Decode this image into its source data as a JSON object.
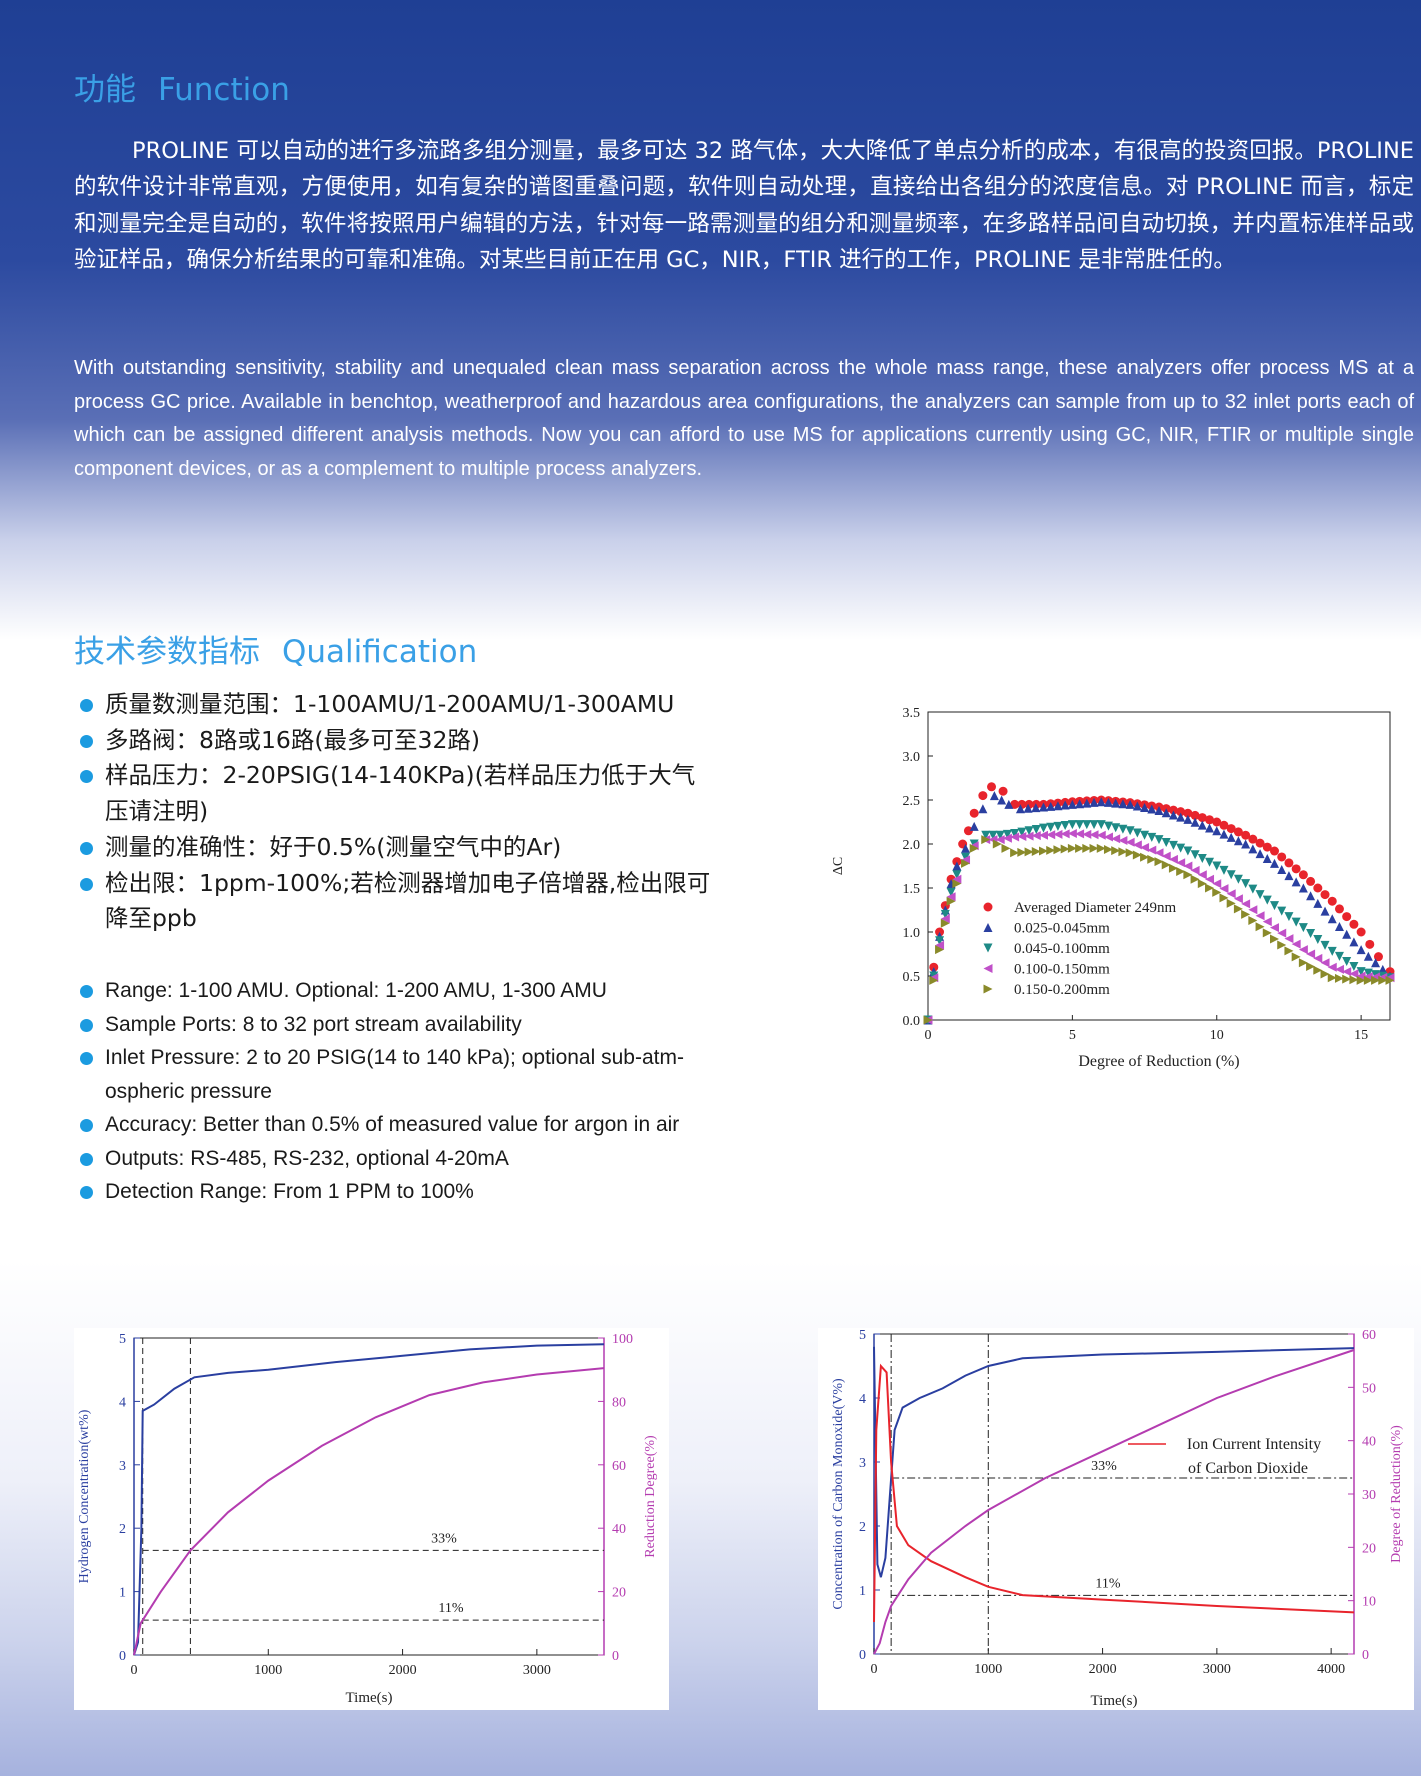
{
  "function_section": {
    "title_cn": "功能",
    "title_en": "Function",
    "paragraph_cn": "PROLINE 可以自动的进行多流路多组分测量，最多可达 32 路气体，大大降低了单点分析的成本，有很高的投资回报。PROLINE 的软件设计非常直观，方便使用，如有复杂的谱图重叠问题，软件则自动处理，直接给出各组分的浓度信息。对 PROLINE 而言，标定和测量完全是自动的，软件将按照用户编辑的方法，针对每一路需测量的组分和测量频率，在多路样品间自动切换，并内置标准样品或验证样品，确保分析结果的可靠和准确。对某些目前正在用 GC，NIR，FTIR 进行的工作，PROLINE 是非常胜任的。",
    "paragraph_en": "With outstanding sensitivity, stability and unequaled clean mass separation across the whole mass range, these analyzers offer process MS at a process GC price. Available in benchtop, weatherproof and hazardous area configurations, the analyzers can sample from up to 32 inlet ports each of which can be assigned different analysis methods. Now you can afford to use MS for applications currently using GC, NIR, FTIR or multiple single component devices, or as a complement to multiple process analyzers."
  },
  "qualification_section": {
    "title_cn": "技术参数指标",
    "title_en": "Qualification",
    "items_cn": [
      "质量数测量范围：1-100AMU/1-200AMU/1-300AMU",
      "多路阀：8路或16路(最多可至32路)",
      "样品压力：2-20PSIG(14-140KPa)(若样品压力低于大气压请注明)",
      "测量的准确性：好于0.5%(测量空气中的Ar)",
      "检出限：1ppm-100%;若检测器增加电子倍增器,检出限可降至ppb"
    ],
    "items_en": [
      "Range: 1-100 AMU. Optional: 1-200 AMU, 1-300 AMU",
      "Sample Ports: 8 to 32 port stream availability",
      "Inlet Pressure: 2 to 20 PSIG(14 to 140 kPa); optional sub-atm-ospheric pressure",
      "Accuracy: Better than 0.5% of measured value for argon in air",
      "Outputs: RS-485, RS-232, optional 4-20mA",
      "Detection Range: From 1 PPM to 100%"
    ]
  },
  "colors": {
    "title": "#3aa0e6",
    "bullet": "#1b9be0",
    "blue_series": "#2a3fa0",
    "magenta_series": "#b43cb0",
    "red_series": "#e8242c",
    "teal_series": "#1e8a86",
    "violet_series": "#c050c8",
    "olive_series": "#8a8a2a"
  },
  "chart_data": [
    {
      "type": "scatter",
      "xlabel": "Degree of Reduction (%)",
      "ylabel": "ΔC",
      "xlim": [
        0,
        16
      ],
      "ylim": [
        0,
        3.5
      ],
      "xticks": [
        "0",
        "5",
        "10",
        "15"
      ],
      "yticks": [
        "0.0",
        "0.5",
        "1.0",
        "1.5",
        "2.0",
        "2.5",
        "3.0",
        "3.5"
      ],
      "legend_position": "lower-left",
      "series": [
        {
          "name": "Averaged Diameter 249nm",
          "marker": "circle",
          "color": "#e8242c",
          "points": [
            [
              0,
              0
            ],
            [
              0.2,
              0.6
            ],
            [
              0.4,
              1.0
            ],
            [
              0.6,
              1.3
            ],
            [
              0.8,
              1.6
            ],
            [
              1.0,
              1.8
            ],
            [
              1.2,
              2.0
            ],
            [
              1.4,
              2.15
            ],
            [
              1.6,
              2.35
            ],
            [
              1.9,
              2.55
            ],
            [
              2.2,
              2.65
            ],
            [
              2.6,
              2.6
            ],
            [
              3.0,
              2.45
            ],
            [
              4,
              2.45
            ],
            [
              5,
              2.48
            ],
            [
              6,
              2.5
            ],
            [
              7,
              2.47
            ],
            [
              8,
              2.42
            ],
            [
              9,
              2.35
            ],
            [
              10,
              2.25
            ],
            [
              11,
              2.1
            ],
            [
              12,
              1.92
            ],
            [
              13,
              1.65
            ],
            [
              14,
              1.35
            ],
            [
              15,
              1.0
            ],
            [
              15.6,
              0.72
            ],
            [
              16,
              0.55
            ]
          ]
        },
        {
          "name": "0.025-0.045mm",
          "marker": "triangle-up",
          "color": "#2a3fa0",
          "points": [
            [
              0,
              0
            ],
            [
              0.2,
              0.55
            ],
            [
              0.4,
              0.95
            ],
            [
              0.6,
              1.25
            ],
            [
              0.8,
              1.55
            ],
            [
              1.0,
              1.75
            ],
            [
              1.3,
              1.95
            ],
            [
              1.6,
              2.2
            ],
            [
              1.9,
              2.4
            ],
            [
              2.3,
              2.55
            ],
            [
              2.8,
              2.45
            ],
            [
              3.2,
              2.4
            ],
            [
              4,
              2.42
            ],
            [
              5,
              2.45
            ],
            [
              6,
              2.48
            ],
            [
              7,
              2.45
            ],
            [
              8,
              2.38
            ],
            [
              9,
              2.28
            ],
            [
              10,
              2.15
            ],
            [
              11,
              2.0
            ],
            [
              12,
              1.78
            ],
            [
              13,
              1.5
            ],
            [
              14,
              1.15
            ],
            [
              15,
              0.8
            ],
            [
              16,
              0.5
            ]
          ]
        },
        {
          "name": "0.045-0.100mm",
          "marker": "triangle-down",
          "color": "#1e8a86",
          "points": [
            [
              0,
              0
            ],
            [
              0.2,
              0.5
            ],
            [
              0.4,
              0.9
            ],
            [
              0.6,
              1.2
            ],
            [
              0.8,
              1.45
            ],
            [
              1.0,
              1.65
            ],
            [
              1.3,
              1.85
            ],
            [
              1.6,
              2.0
            ],
            [
              2.0,
              2.1
            ],
            [
              2.5,
              2.1
            ],
            [
              3,
              2.12
            ],
            [
              4,
              2.18
            ],
            [
              5,
              2.22
            ],
            [
              6,
              2.22
            ],
            [
              7,
              2.15
            ],
            [
              8,
              2.05
            ],
            [
              9,
              1.92
            ],
            [
              10,
              1.75
            ],
            [
              11,
              1.55
            ],
            [
              12,
              1.3
            ],
            [
              13,
              1.05
            ],
            [
              14,
              0.78
            ],
            [
              15,
              0.55
            ],
            [
              16,
              0.48
            ]
          ]
        },
        {
          "name": "0.100-0.150mm",
          "marker": "triangle-left",
          "color": "#c050c8",
          "points": [
            [
              0,
              0
            ],
            [
              0.2,
              0.48
            ],
            [
              0.4,
              0.85
            ],
            [
              0.6,
              1.15
            ],
            [
              0.8,
              1.4
            ],
            [
              1.0,
              1.6
            ],
            [
              1.3,
              1.82
            ],
            [
              1.6,
              1.98
            ],
            [
              2.0,
              2.05
            ],
            [
              2.5,
              2.05
            ],
            [
              3,
              2.08
            ],
            [
              4,
              2.1
            ],
            [
              5,
              2.12
            ],
            [
              6,
              2.1
            ],
            [
              7,
              2.02
            ],
            [
              8,
              1.9
            ],
            [
              9,
              1.75
            ],
            [
              10,
              1.55
            ],
            [
              11,
              1.32
            ],
            [
              12,
              1.05
            ],
            [
              13,
              0.8
            ],
            [
              14,
              0.6
            ],
            [
              15,
              0.5
            ],
            [
              16,
              0.48
            ]
          ]
        },
        {
          "name": "0.150-0.200mm",
          "marker": "triangle-right",
          "color": "#8a8a2a",
          "points": [
            [
              0,
              0
            ],
            [
              0.2,
              0.45
            ],
            [
              0.4,
              0.8
            ],
            [
              0.6,
              1.1
            ],
            [
              0.8,
              1.35
            ],
            [
              1.0,
              1.55
            ],
            [
              1.3,
              1.78
            ],
            [
              1.6,
              1.95
            ],
            [
              2.0,
              2.05
            ],
            [
              2.4,
              2.0
            ],
            [
              3,
              1.9
            ],
            [
              4,
              1.92
            ],
            [
              5,
              1.95
            ],
            [
              6,
              1.95
            ],
            [
              7,
              1.9
            ],
            [
              8,
              1.8
            ],
            [
              9,
              1.65
            ],
            [
              10,
              1.45
            ],
            [
              11,
              1.2
            ],
            [
              12,
              0.92
            ],
            [
              13,
              0.65
            ],
            [
              14,
              0.48
            ],
            [
              15,
              0.45
            ],
            [
              16,
              0.45
            ]
          ]
        }
      ]
    },
    {
      "type": "line",
      "xlabel": "Time(s)",
      "ylabel": "Hydrogen Concentration(wt%)",
      "y2label": "Reduction Degree(%)",
      "xlim": [
        0,
        3500
      ],
      "ylim": [
        0,
        5
      ],
      "y2lim": [
        0,
        100
      ],
      "xticks": [
        "0",
        "1000",
        "2000",
        "3000"
      ],
      "yticks": [
        "0",
        "1",
        "2",
        "3",
        "4",
        "5"
      ],
      "y2ticks": [
        "0",
        "20",
        "40",
        "60",
        "80",
        "100"
      ],
      "annotations": [
        "33%",
        "11%"
      ],
      "series": [
        {
          "axis": "left",
          "color": "#2a3fa0",
          "points": [
            [
              0,
              0
            ],
            [
              30,
              0.2
            ],
            [
              55,
              2.0
            ],
            [
              65,
              3.85
            ],
            [
              150,
              3.95
            ],
            [
              300,
              4.2
            ],
            [
              450,
              4.38
            ],
            [
              700,
              4.45
            ],
            [
              1000,
              4.5
            ],
            [
              1500,
              4.62
            ],
            [
              2000,
              4.72
            ],
            [
              2500,
              4.82
            ],
            [
              3000,
              4.88
            ],
            [
              3500,
              4.9
            ]
          ]
        },
        {
          "axis": "right",
          "color": "#b43cb0",
          "points": [
            [
              0,
              0
            ],
            [
              50,
              10
            ],
            [
              200,
              20
            ],
            [
              420,
              33
            ],
            [
              700,
              45
            ],
            [
              1000,
              55
            ],
            [
              1400,
              66
            ],
            [
              1800,
              75
            ],
            [
              2200,
              82
            ],
            [
              2600,
              86
            ],
            [
              3000,
              88.5
            ],
            [
              3500,
              90.5
            ]
          ]
        }
      ],
      "reference_lines": {
        "vertical": [
          65,
          420
        ],
        "horizontal_right": [
          11,
          33
        ]
      }
    },
    {
      "type": "line",
      "xlabel": "Time(s)",
      "ylabel": "Concentration of Carbon Monoxide(V%)",
      "y2label": "Degree of Reduction(%)",
      "xlim": [
        0,
        4200
      ],
      "ylim": [
        0,
        5
      ],
      "y2lim": [
        0,
        60
      ],
      "xticks": [
        "0",
        "1000",
        "2000",
        "3000",
        "4000"
      ],
      "yticks": [
        "0",
        "1",
        "2",
        "3",
        "4",
        "5"
      ],
      "y2ticks": [
        "0",
        "10",
        "20",
        "30",
        "40",
        "50",
        "60"
      ],
      "legend": "Ion Current Intensity of Carbon Dioxide",
      "annotations": [
        "33%",
        "11%"
      ],
      "series": [
        {
          "axis": "left",
          "color": "#2a3fa0",
          "points": [
            [
              0,
              4.8
            ],
            [
              30,
              1.4
            ],
            [
              60,
              1.2
            ],
            [
              100,
              1.5
            ],
            [
              140,
              2.5
            ],
            [
              180,
              3.5
            ],
            [
              250,
              3.85
            ],
            [
              400,
              4.0
            ],
            [
              600,
              4.15
            ],
            [
              800,
              4.35
            ],
            [
              1000,
              4.5
            ],
            [
              1300,
              4.62
            ],
            [
              2000,
              4.68
            ],
            [
              3000,
              4.72
            ],
            [
              4200,
              4.78
            ]
          ]
        },
        {
          "axis": "left",
          "color": "#e8242c",
          "points": [
            [
              0,
              0.5
            ],
            [
              20,
              3.5
            ],
            [
              60,
              4.5
            ],
            [
              110,
              4.4
            ],
            [
              150,
              3.0
            ],
            [
              200,
              2.0
            ],
            [
              300,
              1.7
            ],
            [
              500,
              1.45
            ],
            [
              800,
              1.2
            ],
            [
              1000,
              1.05
            ],
            [
              1300,
              0.92
            ],
            [
              2000,
              0.85
            ],
            [
              3000,
              0.75
            ],
            [
              4200,
              0.65
            ]
          ]
        },
        {
          "axis": "right",
          "color": "#b43cb0",
          "points": [
            [
              0,
              0
            ],
            [
              50,
              2
            ],
            [
              100,
              6
            ],
            [
              150,
              9
            ],
            [
              300,
              14
            ],
            [
              500,
              19
            ],
            [
              800,
              24
            ],
            [
              1000,
              27
            ],
            [
              1500,
              33
            ],
            [
              2000,
              38
            ],
            [
              2500,
              43
            ],
            [
              3000,
              48
            ],
            [
              3500,
              52
            ],
            [
              4200,
              57
            ]
          ]
        }
      ],
      "reference_lines": {
        "vertical": [
          150,
          1000
        ],
        "horizontal_right": [
          11,
          33
        ]
      }
    }
  ]
}
